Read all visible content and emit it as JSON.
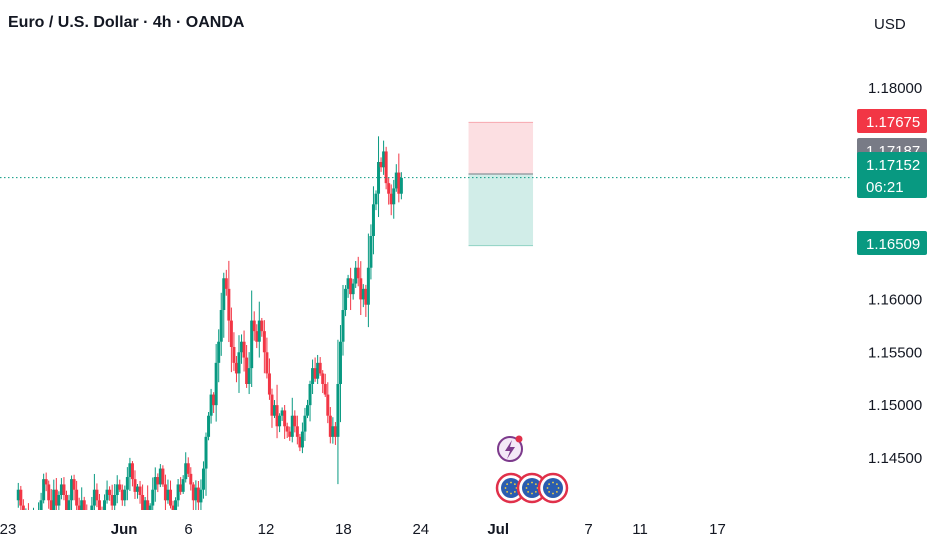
{
  "header": {
    "title": "Euro / U.S. Dollar · 4h · OANDA",
    "currency": "USD"
  },
  "colors": {
    "up": "#089981",
    "down": "#f23645",
    "stop_zone": "#fcdfe2",
    "target_zone": "#d1ede8",
    "tag_red": "#f23645",
    "tag_gray": "#787b86",
    "tag_green": "#089981",
    "event_purple": "#7c3a8c",
    "flag_blue": "#2a5db0",
    "flag_ring": "#e0304a"
  },
  "chart_data": {
    "type": "candlestick",
    "symbol": "EUR/USD",
    "interval": "4h",
    "ylim": [
      1.1405,
      1.1845
    ],
    "xlim_days_from_may23": [
      0,
      35.3
    ],
    "y_ticks": [
      "1.18000",
      "1.14500",
      "1.15000",
      "1.15500",
      "1.16000"
    ],
    "y_tick_values": [
      1.18,
      1.145,
      1.15,
      1.155,
      1.16
    ],
    "x_ticks": [
      {
        "label": "23",
        "day": 0,
        "bold": false
      },
      {
        "label": "Jun",
        "day": 9,
        "bold": true
      },
      {
        "label": "6",
        "day": 14,
        "bold": false
      },
      {
        "label": "12",
        "day": 20,
        "bold": false
      },
      {
        "label": "18",
        "day": 26,
        "bold": false
      },
      {
        "label": "24",
        "day": 32,
        "bold": false
      },
      {
        "label": "Jul",
        "day": 38,
        "bold": true
      },
      {
        "label": "7",
        "day": 45,
        "bold": false
      },
      {
        "label": "11",
        "day": 49,
        "bold": false
      },
      {
        "label": "17",
        "day": 55,
        "bold": false
      }
    ],
    "price_tags": [
      {
        "label": "1.17675",
        "value": 1.17675,
        "color": "tag_red"
      },
      {
        "label": "1.17187",
        "value": 1.17187,
        "color": "tag_gray"
      },
      {
        "label": "1.17152",
        "sub": "06:21",
        "value": 1.17152,
        "color": "tag_green"
      },
      {
        "label": "1.16509",
        "value": 1.16509,
        "color": "tag_green"
      }
    ],
    "last_price": 1.17152,
    "position": {
      "entry": 1.17187,
      "stop": 1.17675,
      "target": 1.16509,
      "start_day": 35.7,
      "end_day": 40.7
    },
    "price_path": [
      1.141,
      1.142,
      1.1405,
      1.1395,
      1.14,
      1.139,
      1.1385,
      1.1395,
      1.139,
      1.14,
      1.141,
      1.143,
      1.1425,
      1.141,
      1.14,
      1.142,
      1.1405,
      1.1415,
      1.1425,
      1.1415,
      1.14,
      1.141,
      1.143,
      1.142,
      1.1405,
      1.1395,
      1.141,
      1.14,
      1.139,
      1.1395,
      1.1405,
      1.142,
      1.141,
      1.14,
      1.1395,
      1.141,
      1.142,
      1.1415,
      1.1405,
      1.1415,
      1.1425,
      1.142,
      1.141,
      1.142,
      1.1432,
      1.1445,
      1.143,
      1.1418,
      1.1423,
      1.1415,
      1.14,
      1.141,
      1.1395,
      1.1405,
      1.142,
      1.1432,
      1.1425,
      1.144,
      1.1425,
      1.141,
      1.142,
      1.1405,
      1.1395,
      1.141,
      1.1425,
      1.1418,
      1.143,
      1.1445,
      1.1435,
      1.1425,
      1.141,
      1.1422,
      1.1408,
      1.142,
      1.144,
      1.147,
      1.149,
      1.151,
      1.15,
      1.154,
      1.156,
      1.159,
      1.162,
      1.161,
      1.158,
      1.1555,
      1.154,
      1.153,
      1.155,
      1.156,
      1.1545,
      1.152,
      1.1535,
      1.158,
      1.157,
      1.156,
      1.158,
      1.157,
      1.155,
      1.153,
      1.151,
      1.149,
      1.15,
      1.148,
      1.149,
      1.1495,
      1.148,
      1.1475,
      1.147,
      1.149,
      1.148,
      1.147,
      1.146,
      1.1475,
      1.149,
      1.15,
      1.152,
      1.1535,
      1.1525,
      1.154,
      1.153,
      1.152,
      1.151,
      1.149,
      1.147,
      1.148,
      1.147,
      1.152,
      1.156,
      1.159,
      1.161,
      1.162,
      1.1605,
      1.1615,
      1.163,
      1.162,
      1.16,
      1.161,
      1.1595,
      1.163,
      1.166,
      1.169,
      1.17,
      1.173,
      1.1725,
      1.174,
      1.171,
      1.17,
      1.169,
      1.1705,
      1.172,
      1.17,
      1.1715
    ]
  },
  "events": {
    "lightning": "lightning-icon",
    "flags": [
      "eu-flag-icon",
      "eu-flag-icon",
      "eu-flag-icon"
    ]
  }
}
